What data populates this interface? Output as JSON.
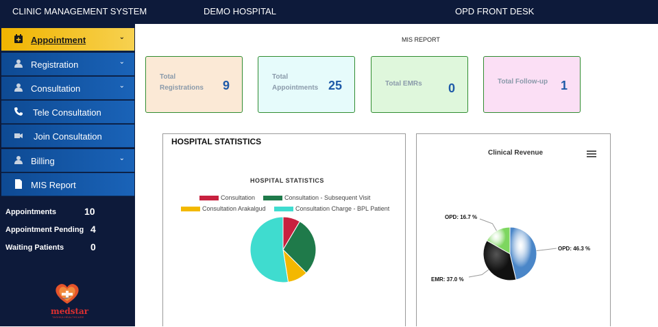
{
  "header": {
    "app_title": "CLINIC MANAGEMENT SYSTEM",
    "hospital": "DEMO HOSPITAL",
    "desk": "OPD FRONT DESK"
  },
  "sidebar": {
    "items": [
      {
        "label": "Appointment",
        "icon": "calendar-icon",
        "chevron": "⌄"
      },
      {
        "label": "Registration",
        "icon": "user-icon",
        "chevron": "⌄"
      },
      {
        "label": "Consultation",
        "icon": "user-icon",
        "chevron": "⌄"
      },
      {
        "label": "Tele Consultation",
        "icon": "phone-icon"
      },
      {
        "label": "Join Consultation",
        "icon": "video-icon"
      },
      {
        "label": "Billing",
        "icon": "user-icon",
        "chevron": "⌄"
      },
      {
        "label": "MIS Report",
        "icon": "document-icon"
      }
    ],
    "stats": [
      {
        "label": "Appointments",
        "value": "10"
      },
      {
        "label": "Appointment Pending",
        "value": "4"
      },
      {
        "label": "Waiting Patients",
        "value": "0"
      }
    ],
    "logo": {
      "name": "medstar",
      "tagline": "TASHKA HEALTHCARE"
    }
  },
  "main": {
    "report_title": "MIS REPORT",
    "cards": [
      {
        "label_line1": "Total",
        "label_line2": "Registrations",
        "value": "9",
        "bg": "#fbe9d6"
      },
      {
        "label_line1": "Total",
        "label_line2": "Appointments",
        "value": "25",
        "bg": "#e6fbfb"
      },
      {
        "label_line1": "Total EMRs",
        "label_line2": "",
        "value": "0",
        "bg": "#dff7dc"
      },
      {
        "label_line1": "Total Follow-up",
        "label_line2": "",
        "value": "1",
        "bg": "#fbdff5"
      }
    ],
    "hospital_panel_title": "HOSPITAL STATISTICS",
    "revenue_menu_icon": "hamburger-icon"
  },
  "chart_data": [
    {
      "type": "pie",
      "title": "HOSPITAL STATISTICS",
      "categories": [
        "Consultation",
        "Consultation - Subsequent Visit",
        "Consultation Arakalgud",
        "Consultation Charge - BPL Patient"
      ],
      "values": [
        8.5,
        29.0,
        10.0,
        52.5
      ],
      "colors": [
        "#c8213f",
        "#1f7a4a",
        "#f3b800",
        "#3fdccf"
      ],
      "legend": "top"
    },
    {
      "type": "pie",
      "title": "Clinical Revenue",
      "categories": [
        "OPD",
        "EMR",
        "OPD"
      ],
      "values": [
        46.3,
        37.0,
        16.7
      ],
      "labels": [
        "OPD: 46.3 %",
        "EMR: 37.0 %",
        "OPD: 16.7 %"
      ],
      "colors": [
        "#4a86c8",
        "#111111",
        "#7dd65f"
      ]
    }
  ]
}
